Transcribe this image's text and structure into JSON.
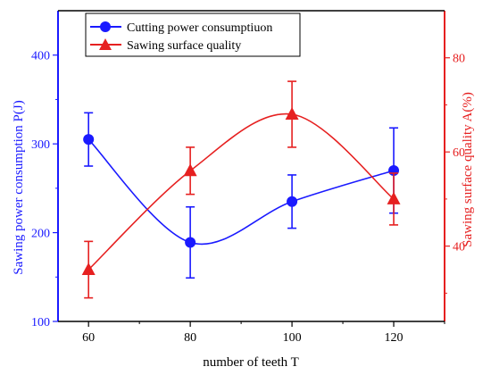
{
  "chart_data": {
    "type": "line",
    "xlabel": "number of teeth T",
    "ylabel_left": "Sawing power consumption P(J)",
    "ylabel_right": "Sawing surface quality A(%)",
    "x": [
      60,
      80,
      100,
      120
    ],
    "xlim": [
      54,
      130
    ],
    "ylim_left": [
      100,
      450
    ],
    "ylim_right": [
      24,
      90
    ],
    "xticks": [
      60,
      80,
      100,
      120
    ],
    "yticks_left": [
      100,
      200,
      300,
      400
    ],
    "yticks_right": [
      40,
      60,
      80
    ],
    "legend_position": "top-left",
    "colors": {
      "left_axis": "#1a1aff",
      "right_axis": "#e62020"
    },
    "series": [
      {
        "name": "Cutting power consumptiuon",
        "axis": "left",
        "marker": "circle",
        "color": "#1a1aff",
        "values": [
          305,
          189,
          235,
          270
        ],
        "error": [
          30,
          40,
          30,
          48
        ]
      },
      {
        "name": "Sawing surface quality",
        "axis": "right",
        "marker": "triangle",
        "color": "#e62020",
        "values": [
          35,
          56,
          68,
          50
        ],
        "error": [
          6,
          5,
          7,
          5.5
        ]
      }
    ]
  }
}
